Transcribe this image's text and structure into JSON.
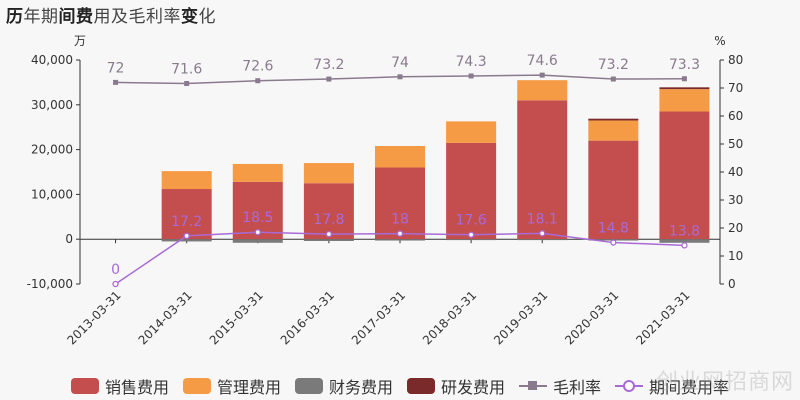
{
  "title": "历年期间费用及毛利率变化",
  "title_parts": {
    "a": "历",
    "b": "年期",
    "c": "间费",
    "d": "用及毛利率",
    "e": "变",
    "f": "化"
  },
  "left_unit": "万",
  "right_unit": "%",
  "watermark": "创业网招商网",
  "chart_data": {
    "type": "bar",
    "categories": [
      "2013-03-31",
      "2014-03-31",
      "2015-03-31",
      "2016-03-31",
      "2017-03-31",
      "2018-03-31",
      "2019-03-31",
      "2020-03-31",
      "2021-03-31"
    ],
    "ylim_left": [
      -10000,
      40000
    ],
    "left_ticks": [
      "40,000",
      "30,000",
      "20,000",
      "10,000",
      "0",
      "-10,000"
    ],
    "left_tick_values": [
      40000,
      30000,
      20000,
      10000,
      0,
      -10000
    ],
    "ylim_right": [
      0,
      80
    ],
    "right_ticks": [
      "80",
      "70",
      "60",
      "50",
      "40",
      "30",
      "20",
      "10",
      "0"
    ],
    "right_tick_values": [
      80,
      70,
      60,
      50,
      40,
      30,
      20,
      10,
      0
    ],
    "series": [
      {
        "name": "销售费用",
        "type": "bar",
        "color": "#c44e4e",
        "values": [
          0,
          11200,
          12800,
          12500,
          16000,
          21500,
          31000,
          22000,
          28500
        ]
      },
      {
        "name": "管理费用",
        "type": "bar",
        "color": "#f59a45",
        "values": [
          0,
          4000,
          4000,
          4500,
          4800,
          4800,
          4500,
          4500,
          5000
        ]
      },
      {
        "name": "财务费用",
        "type": "bar",
        "color": "#7a7a7a",
        "values": [
          0,
          -500,
          -800,
          -400,
          -300,
          -200,
          -200,
          -300,
          -800
        ]
      },
      {
        "name": "研发费用",
        "type": "bar",
        "color": "#7a2a2a",
        "values": [
          0,
          0,
          0,
          0,
          0,
          0,
          0,
          400,
          400
        ]
      },
      {
        "name": "毛利率",
        "type": "line",
        "axis": "right",
        "color": "#8a7a8e",
        "values": [
          72,
          71.6,
          72.6,
          73.2,
          74,
          74.3,
          74.6,
          73.2,
          73.3
        ],
        "labels": [
          "72",
          "71.6",
          "72.6",
          "73.2",
          "74",
          "74.3",
          "74.6",
          "73.2",
          "73.3"
        ]
      },
      {
        "name": "期间费用率",
        "type": "line",
        "axis": "right",
        "color": "#a86bd6",
        "values": [
          0,
          17.2,
          18.5,
          17.8,
          18,
          17.6,
          18.1,
          14.8,
          13.8
        ],
        "labels": [
          "0",
          "17.2",
          "18.5",
          "17.8",
          "18",
          "17.6",
          "18.1",
          "14.8",
          "13.8"
        ]
      }
    ],
    "grid": false,
    "legend_position": "bottom"
  }
}
